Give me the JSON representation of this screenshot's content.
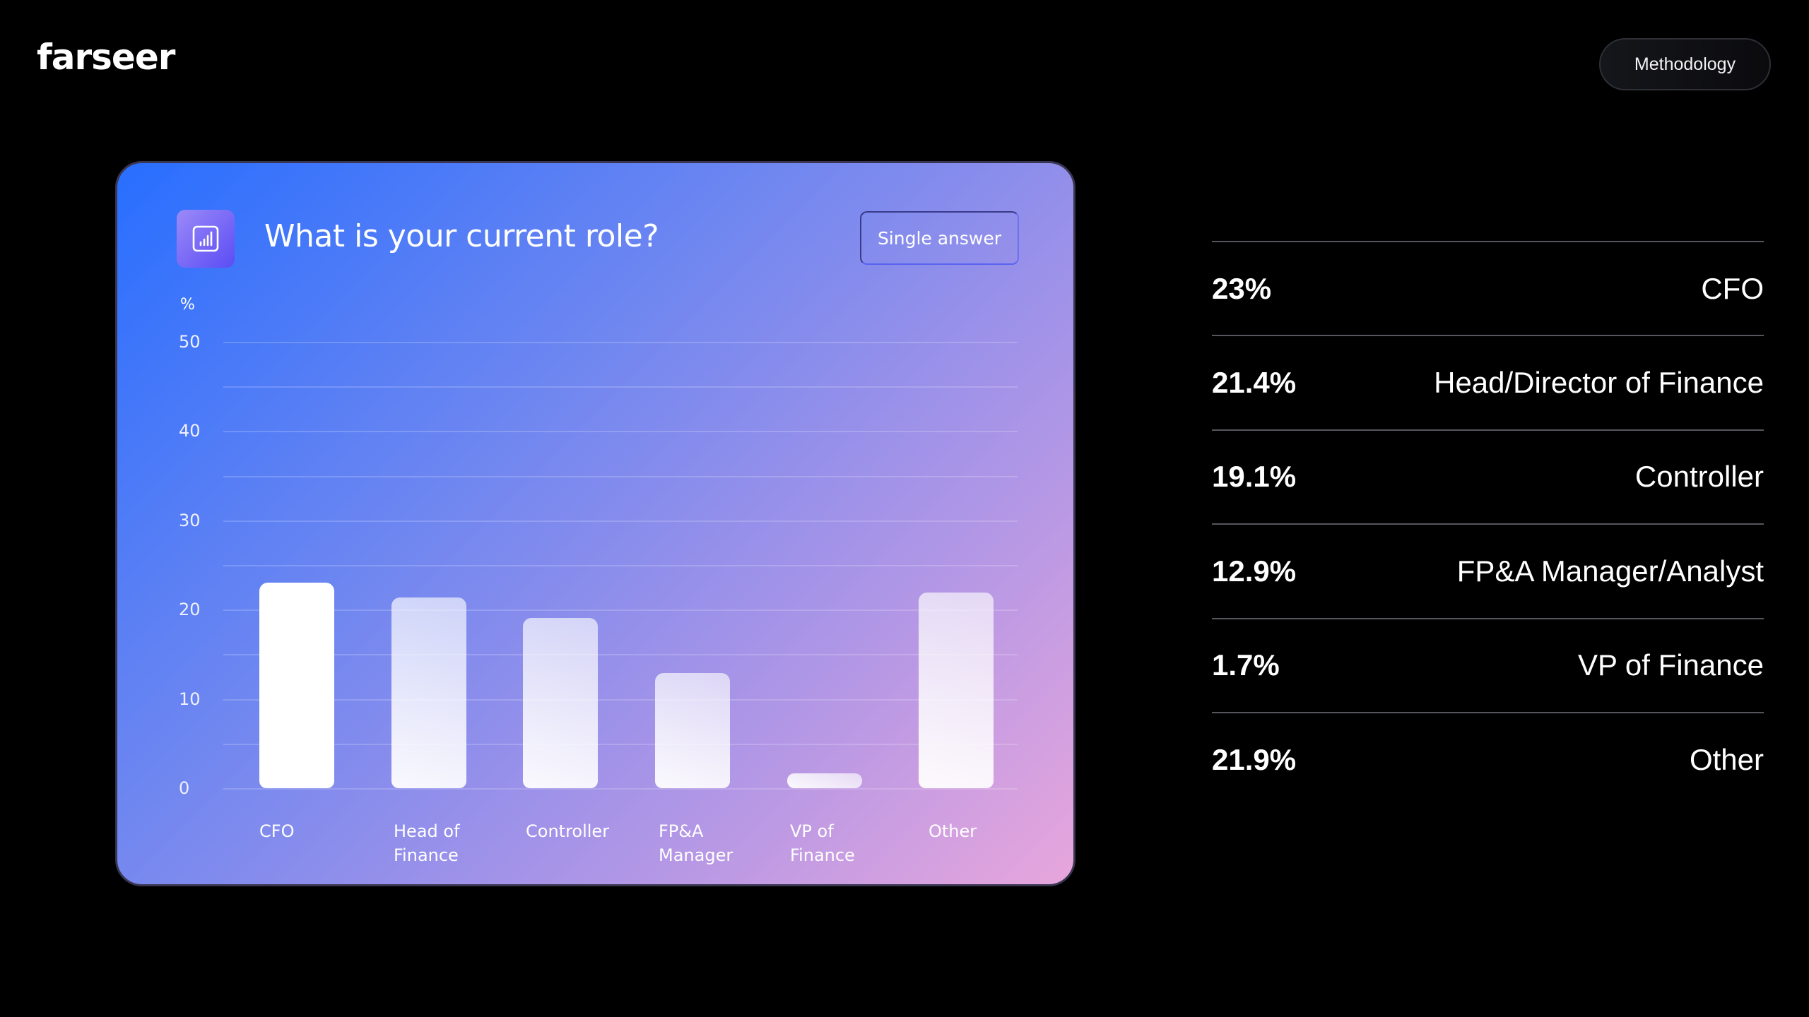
{
  "header": {
    "logo": "farseer",
    "methodology_label": "Methodology"
  },
  "card": {
    "icon": "bar-chart-icon",
    "title": "What is your current role?",
    "answer_type": "Single answer",
    "y_unit": "%",
    "y_ticks": [
      "50",
      "40",
      "30",
      "20",
      "10",
      "0"
    ],
    "x_labels": [
      "CFO",
      "Head of\nFinance",
      "Controller",
      "FP&A\nManager",
      "VP of\nFinance",
      "Other"
    ]
  },
  "results": [
    {
      "value": "23%",
      "label": "CFO"
    },
    {
      "value": "21.4%",
      "label": "Head/Director of Finance"
    },
    {
      "value": "19.1%",
      "label": "Controller"
    },
    {
      "value": "12.9%",
      "label": "FP&A Manager/Analyst"
    },
    {
      "value": "1.7%",
      "label": "VP of Finance"
    },
    {
      "value": "21.9%",
      "label": "Other"
    }
  ],
  "colors": {
    "background": "#000000",
    "card_gradient_start": "#286eff",
    "card_gradient_end": "#e8a6dc",
    "icon_gradient_start": "#9b8af8",
    "icon_gradient_end": "#5b4cf5",
    "bar_primary": "#ffffff",
    "divider": "#55555e"
  },
  "chart_data": {
    "type": "bar",
    "title": "What is your current role?",
    "subtitle": "Single answer",
    "categories": [
      "CFO",
      "Head of Finance",
      "Controller",
      "FP&A Manager",
      "VP of Finance",
      "Other"
    ],
    "values": [
      23,
      21.4,
      19.1,
      12.9,
      1.7,
      21.9
    ],
    "xlabel": "",
    "ylabel": "%",
    "ylim": [
      0,
      50
    ],
    "yticks": [
      0,
      10,
      20,
      30,
      40,
      50
    ],
    "grid": true,
    "grid_step": 5,
    "legend": "none",
    "highlighted_category": "CFO"
  }
}
